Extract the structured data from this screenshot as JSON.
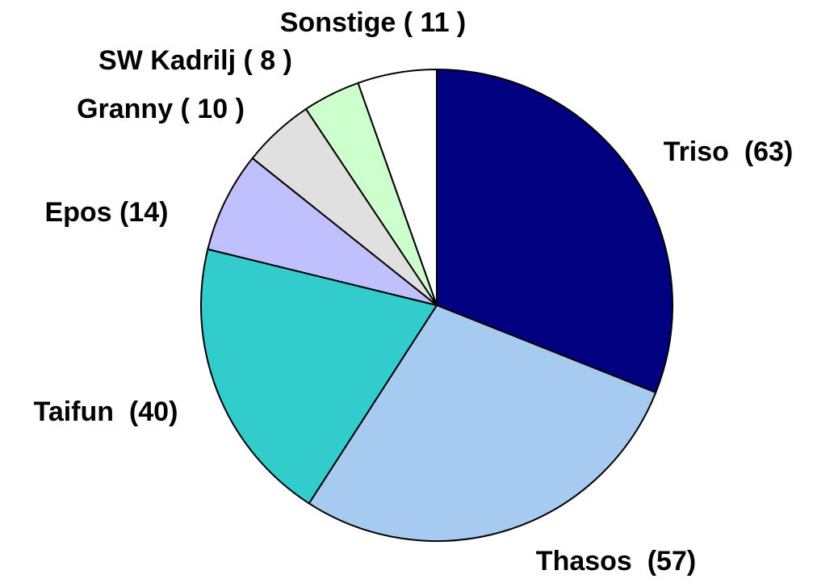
{
  "chart_data": {
    "type": "pie",
    "categories": [
      "Triso  (63)",
      "Thasos  (57)",
      "Taifun  (40)",
      "Epos (14)",
      "Granny ( 10 )",
      "SW Kadrilj ( 8 )",
      "Sonstige ( 11 )"
    ],
    "values": [
      63,
      57,
      40,
      14,
      10,
      8,
      11
    ],
    "colors": [
      "#000080",
      "#a6caf0",
      "#33cccc",
      "#c0c0ff",
      "#e0e0e0",
      "#ccffcc",
      "#ffffff"
    ]
  }
}
